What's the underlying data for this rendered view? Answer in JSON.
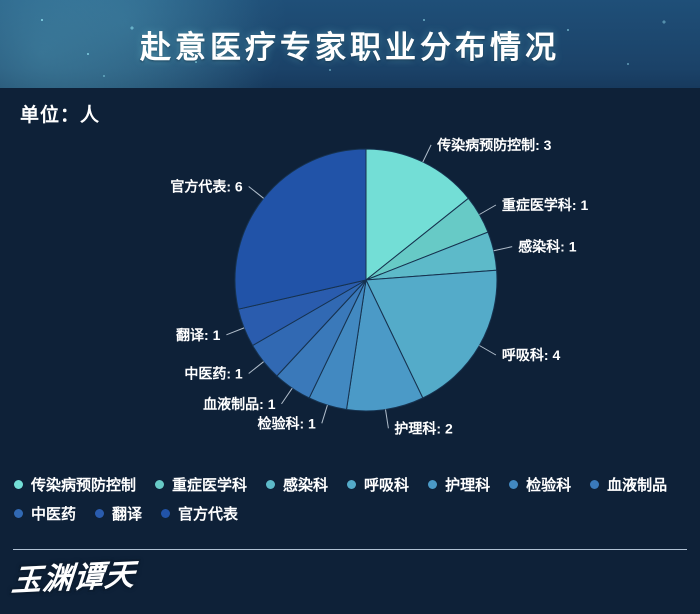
{
  "header": {
    "title": "赴意医疗专家职业分布情况"
  },
  "unit_label": "单位：人",
  "chart_data": {
    "type": "pie",
    "title": "赴意医疗专家职业分布情况",
    "unit": "人",
    "total": 21,
    "start_angle": "12-oclock",
    "direction": "clockwise",
    "label_format": "{name}: {value}",
    "legend_position": "bottom",
    "series": [
      {
        "name": "传染病预防控制",
        "value": 3,
        "color": "#73ded6"
      },
      {
        "name": "重症医学科",
        "value": 1,
        "color": "#67cac6"
      },
      {
        "name": "感染科",
        "value": 1,
        "color": "#5dbac9"
      },
      {
        "name": "呼吸科",
        "value": 4,
        "color": "#54abc9"
      },
      {
        "name": "护理科",
        "value": 2,
        "color": "#4b9ac7"
      },
      {
        "name": "检验科",
        "value": 1,
        "color": "#4289c1"
      },
      {
        "name": "血液制品",
        "value": 1,
        "color": "#3a79ba"
      },
      {
        "name": "中医药",
        "value": 1,
        "color": "#3169b3"
      },
      {
        "name": "翻译",
        "value": 1,
        "color": "#2a5cae"
      },
      {
        "name": "官方代表",
        "value": 6,
        "color": "#2153a8"
      }
    ]
  },
  "footer": {
    "logo_text": "玉渊谭天"
  },
  "colors": {
    "background": "#0e2138",
    "header_background": "#1e4d75",
    "text": "#ffffff",
    "leader_line": "#cdd9e5",
    "slice_border": "#16324f",
    "separator": "#c9d8e8"
  }
}
